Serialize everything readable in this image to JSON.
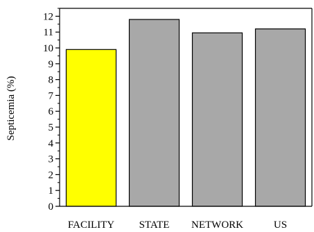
{
  "chart_data": {
    "type": "bar",
    "categories": [
      "FACILITY",
      "STATE",
      "NETWORK",
      "US"
    ],
    "values": [
      9.9,
      11.8,
      10.95,
      11.2
    ],
    "bar_colors": [
      "#ffff00",
      "#a8a8a8",
      "#a8a8a8",
      "#a8a8a8"
    ],
    "title": "",
    "xlabel": "",
    "ylabel": "Septicemia (%)",
    "ylim": [
      0,
      12.5
    ],
    "yticks": [
      "0",
      "1",
      "2",
      "3",
      "4",
      "5",
      "6",
      "7",
      "8",
      "9",
      "10",
      "11",
      "12"
    ],
    "grid": false,
    "legend": "none"
  }
}
